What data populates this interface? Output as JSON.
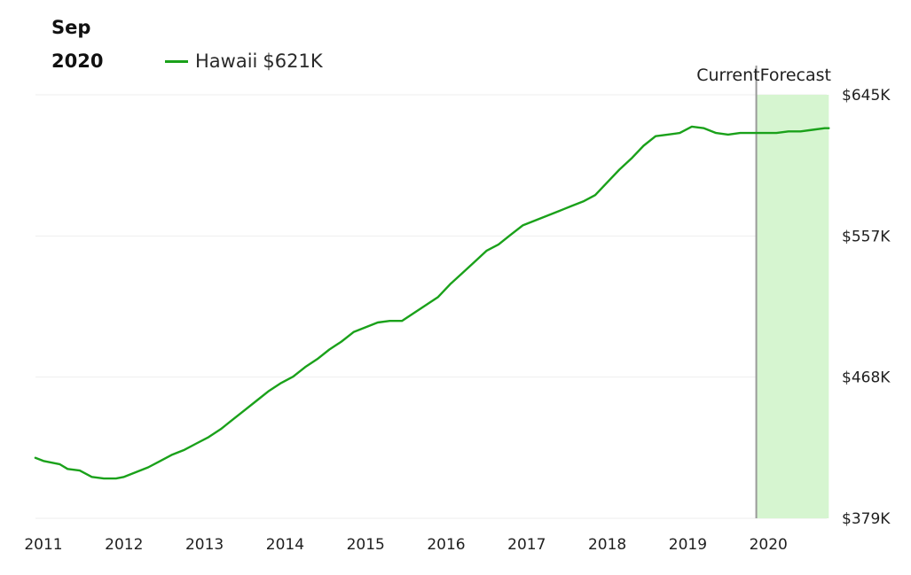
{
  "header": {
    "month": "Sep",
    "year": "2020"
  },
  "legend": {
    "series_name": "Hawaii",
    "current_value": "$621K",
    "color": "#1aa11a"
  },
  "regions": {
    "current_label": "Current",
    "forecast_label": "Forecast",
    "forecast_fill": "#d6f5d0",
    "divider_color": "#9a9a9a"
  },
  "chart_data": {
    "type": "line",
    "title": "",
    "xlabel": "",
    "ylabel": "",
    "x_ticks": [
      "2011",
      "2012",
      "2013",
      "2014",
      "2015",
      "2016",
      "2017",
      "2018",
      "2019",
      "2020"
    ],
    "y_ticks": [
      "$379K",
      "$468K",
      "$557K",
      "$645K"
    ],
    "ylim": [
      379,
      645
    ],
    "xlim": [
      2010.9,
      2020.8
    ],
    "forecast_start": 2019.85,
    "forecast_end": 2020.75,
    "grid": true,
    "series": [
      {
        "name": "Hawaii",
        "color": "#1aa11a",
        "x": [
          2010.9,
          2011.0,
          2011.2,
          2011.3,
          2011.45,
          2011.6,
          2011.75,
          2011.9,
          2012.0,
          2012.15,
          2012.3,
          2012.45,
          2012.6,
          2012.75,
          2012.9,
          2013.05,
          2013.2,
          2013.35,
          2013.5,
          2013.65,
          2013.8,
          2013.95,
          2014.1,
          2014.25,
          2014.4,
          2014.55,
          2014.7,
          2014.85,
          2015.0,
          2015.15,
          2015.3,
          2015.45,
          2015.6,
          2015.75,
          2015.9,
          2016.05,
          2016.2,
          2016.35,
          2016.5,
          2016.65,
          2016.8,
          2016.95,
          2017.1,
          2017.25,
          2017.4,
          2017.55,
          2017.7,
          2017.85,
          2018.0,
          2018.15,
          2018.3,
          2018.45,
          2018.6,
          2018.75,
          2018.9,
          2019.05,
          2019.2,
          2019.35,
          2019.5,
          2019.65,
          2019.8,
          2019.95,
          2020.1,
          2020.25,
          2020.4,
          2020.55,
          2020.7,
          2020.75
        ],
        "values": [
          417,
          415,
          413,
          410,
          409,
          405,
          404,
          404,
          405,
          408,
          411,
          415,
          419,
          422,
          426,
          430,
          435,
          441,
          447,
          453,
          459,
          464,
          468,
          474,
          479,
          485,
          490,
          496,
          499,
          502,
          503,
          503,
          508,
          513,
          518,
          526,
          533,
          540,
          547,
          551,
          557,
          563,
          566,
          569,
          572,
          575,
          578,
          582,
          590,
          598,
          605,
          613,
          619,
          620,
          621,
          625,
          624,
          621,
          620,
          621,
          621,
          621,
          621,
          622,
          622,
          623,
          624,
          624
        ]
      }
    ]
  }
}
